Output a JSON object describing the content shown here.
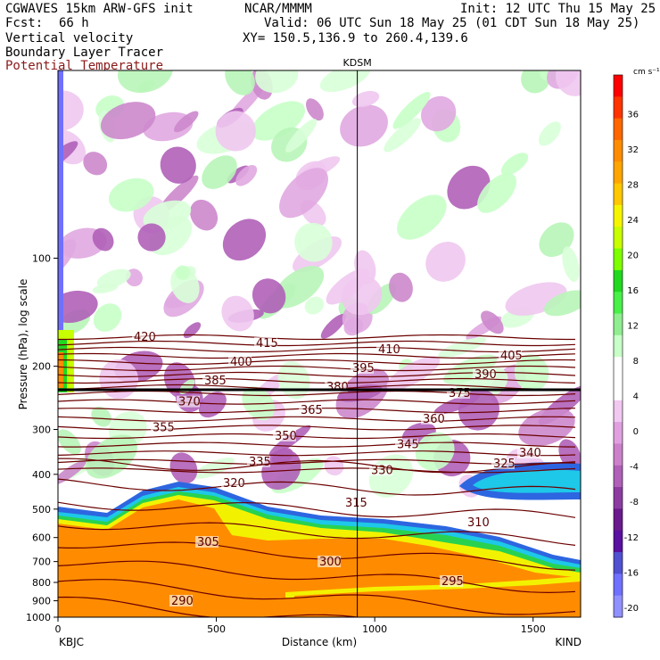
{
  "header": {
    "model": "CGWAVES 15km ARW-GFS init",
    "forecast_label": "Fcst:",
    "forecast_value": "66 h",
    "org": "NCAR/MMMM",
    "init": "Init: 12 UTC Thu 15 May 25",
    "valid": "Valid: 06 UTC Sun 18 May 25 (01 CDT Sun 18 May 25)",
    "xy": "XY= 150.5,136.9 to 260.4,139.6",
    "field1": "Vertical velocity",
    "field2": "Boundary Layer Tracer",
    "field3": "Potential Temperature",
    "field3_color": "#8b1a1a"
  },
  "chart_data": {
    "type": "heatmap",
    "station_marker": {
      "label": "KDSM",
      "distance_km": 945
    },
    "xlabel": "Distance (km)",
    "ylabel": "Pressure (hPa), log scale",
    "x_start_label": "KBJC",
    "x_end_label": "KIND",
    "xlim": [
      0,
      1650
    ],
    "ylim_hpa": [
      1000,
      30
    ],
    "log_y": true,
    "x_ticks": [
      "0",
      "500",
      "1000",
      "1500"
    ],
    "x_tick_values": [
      0,
      500,
      1000,
      1500
    ],
    "y_ticks": [
      "100",
      "200",
      "300",
      "400",
      "500",
      "600",
      "700",
      "800",
      "900",
      "1000"
    ],
    "y_tick_values": [
      100,
      200,
      300,
      400,
      500,
      600,
      700,
      800,
      900,
      1000
    ],
    "colorbar": {
      "units": "cm s⁻¹",
      "labels": [
        "36",
        "32",
        "28",
        "24",
        "20",
        "16",
        "12",
        "8",
        "4",
        "0",
        "-4",
        "-8",
        "-12",
        "-16",
        "-20"
      ],
      "colors": [
        "#ff0000",
        "#ff3300",
        "#ff6600",
        "#ff8c00",
        "#ffa500",
        "#ffc800",
        "#f5f500",
        "#c8ff00",
        "#7dff00",
        "#20d820",
        "#48f048",
        "#90ee90",
        "#c8ffc8",
        "#ffffff",
        "#ffffff",
        "#f0c8f0",
        "#e0a0e0",
        "#cc80cc",
        "#b060b8",
        "#8c3ca0",
        "#6a1a8c",
        "#5a10a0",
        "#5050d0",
        "#7070ff",
        "#9090ff"
      ]
    },
    "theta_contour_labels": [
      "420",
      "415",
      "410",
      "405",
      "400",
      "395",
      "390",
      "385",
      "380",
      "375",
      "370",
      "365",
      "360",
      "355",
      "350",
      "345",
      "340",
      "335",
      "330",
      "325",
      "320",
      "315",
      "310",
      "305",
      "300",
      "295",
      "290"
    ]
  }
}
